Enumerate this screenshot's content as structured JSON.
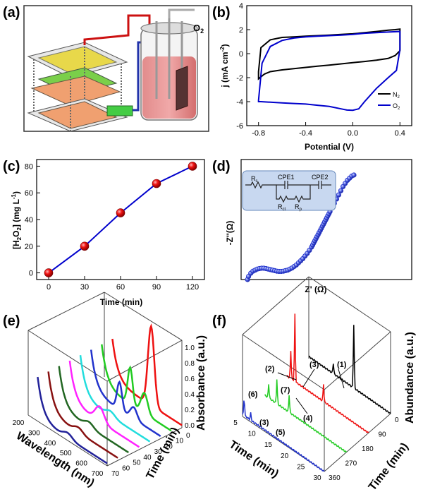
{
  "panel_labels": [
    "(a)",
    "(b)",
    "(c)",
    "(d)",
    "(e)",
    "(f)"
  ],
  "panel_a": {
    "gas_label": "O",
    "gas_sub": "2"
  },
  "chart_data": [
    {
      "id": "b",
      "type": "line",
      "xlabel": "Potential (V)",
      "ylabel": "j (mA cm",
      "ylabel_sup": "-2",
      "ylabel_end": ")",
      "xlim": [
        -0.9,
        0.5
      ],
      "ylim": [
        -6,
        4
      ],
      "x_ticks": [
        -0.8,
        -0.4,
        0.0,
        0.4
      ],
      "x_tick_labels": [
        "-0.8",
        "-0.4",
        "0.0",
        "0.4"
      ],
      "y_ticks": [
        -6,
        -4,
        -2,
        0,
        2,
        4
      ],
      "legend_position": "bottom-right",
      "series": [
        {
          "name": "N",
          "name_sub": "2",
          "color": "#000000",
          "x": [
            -0.8,
            -0.75,
            -0.7,
            -0.6,
            -0.5,
            -0.4,
            -0.3,
            -0.2,
            -0.1,
            0.0,
            0.1,
            0.2,
            0.3,
            0.36,
            0.4,
            0.4,
            0.36,
            0.3,
            0.2,
            0.1,
            0.0,
            -0.1,
            -0.2,
            -0.3,
            -0.4,
            -0.5,
            -0.6,
            -0.7,
            -0.78,
            -0.8
          ],
          "y": [
            -2.1,
            -1.7,
            -1.5,
            -1.35,
            -1.25,
            -1.15,
            -1.05,
            -0.95,
            -0.85,
            -0.75,
            -0.65,
            -0.55,
            -0.4,
            -0.15,
            0.25,
            2.05,
            2.0,
            1.95,
            1.85,
            1.75,
            1.65,
            1.6,
            1.55,
            1.5,
            1.45,
            1.4,
            1.35,
            1.15,
            0.5,
            -1.5
          ]
        },
        {
          "name": "O",
          "name_sub": "2",
          "color": "#0000cc",
          "x": [
            -0.8,
            -0.78,
            -0.7,
            -0.6,
            -0.5,
            -0.4,
            -0.3,
            -0.2,
            -0.1,
            -0.05,
            0.0,
            0.05,
            0.1,
            0.2,
            0.3,
            0.37,
            0.4,
            0.4,
            0.3,
            0.2,
            0.1,
            0.0,
            -0.1,
            -0.2,
            -0.3,
            -0.4,
            -0.5,
            -0.6,
            -0.7,
            -0.77,
            -0.8
          ],
          "y": [
            -4.0,
            -4.0,
            -4.05,
            -4.1,
            -4.15,
            -4.2,
            -4.3,
            -4.4,
            -4.6,
            -4.7,
            -4.72,
            -4.6,
            -4.0,
            -2.9,
            -2.0,
            -1.4,
            0.35,
            1.85,
            1.8,
            1.75,
            1.7,
            1.6,
            1.55,
            1.5,
            1.45,
            1.4,
            1.3,
            1.1,
            0.6,
            -0.8,
            -3.9
          ]
        }
      ]
    },
    {
      "id": "c",
      "type": "line",
      "xlabel": "Time (min)",
      "ylabel_parts": [
        "[H",
        "2",
        "O",
        "2",
        "] (mg L",
        "-1",
        ")"
      ],
      "xlim": [
        -10,
        130
      ],
      "ylim": [
        -5,
        85
      ],
      "x_ticks": [
        0,
        30,
        60,
        90,
        120
      ],
      "y_ticks": [
        0,
        20,
        40,
        60,
        80
      ],
      "series": [
        {
          "name": "",
          "color": "#0000cc",
          "marker_color": "#ee1111",
          "x": [
            0,
            30,
            60,
            90,
            120
          ],
          "y": [
            0,
            20,
            45,
            67,
            80
          ]
        }
      ]
    },
    {
      "id": "d",
      "type": "scatter",
      "xlabel": "Z' (Ω)",
      "ylabel": "-Z''(Ω)",
      "color": "#2233cc",
      "inset": {
        "labels": [
          "R",
          "s",
          "CPE1",
          "CPE2",
          "R",
          "ct",
          "R",
          "p"
        ]
      },
      "x": [
        0.02,
        0.03,
        0.05,
        0.07,
        0.09,
        0.11,
        0.13,
        0.15,
        0.17,
        0.19,
        0.21,
        0.23,
        0.25,
        0.27,
        0.29,
        0.31,
        0.33,
        0.35,
        0.37,
        0.39,
        0.41,
        0.43,
        0.45,
        0.47,
        0.49,
        0.51,
        0.53,
        0.55,
        0.57,
        0.59,
        0.61,
        0.62,
        0.63,
        0.64,
        0.65,
        0.66,
        0.67,
        0.68,
        0.69,
        0.7,
        0.71,
        0.72,
        0.73,
        0.74,
        0.75,
        0.76,
        0.77,
        0.78,
        0.8,
        0.82,
        0.84,
        0.86,
        0.88,
        0.9,
        0.92,
        0.94,
        0.96,
        0.98,
        1.0
      ],
      "y": [
        0.0,
        0.03,
        0.06,
        0.08,
        0.09,
        0.1,
        0.105,
        0.108,
        0.108,
        0.105,
        0.1,
        0.095,
        0.09,
        0.085,
        0.08,
        0.078,
        0.078,
        0.08,
        0.085,
        0.09,
        0.1,
        0.11,
        0.125,
        0.14,
        0.16,
        0.18,
        0.2,
        0.225,
        0.25,
        0.28,
        0.31,
        0.33,
        0.35,
        0.37,
        0.39,
        0.41,
        0.43,
        0.45,
        0.47,
        0.49,
        0.51,
        0.53,
        0.55,
        0.57,
        0.59,
        0.61,
        0.63,
        0.65,
        0.69,
        0.73,
        0.77,
        0.81,
        0.85,
        0.89,
        0.92,
        0.95,
        0.97,
        0.99,
        1.0
      ]
    },
    {
      "id": "e",
      "type": "line",
      "xlabel": "Wavelength (nm)",
      "ylabel": "Absorbance (a.u.)",
      "zlabel": "Time (min)",
      "x_ticks": [
        200,
        300,
        400,
        500,
        600,
        700
      ],
      "z_ticks": [
        0,
        10,
        20,
        30,
        40,
        50,
        60,
        70
      ],
      "y_ticks": [
        "0.0",
        "0.2",
        "0.4",
        "0.6",
        "0.8",
        "1.0"
      ],
      "series": [
        {
          "time": 0,
          "color": "#ee1111"
        },
        {
          "time": 10,
          "color": "#22cc22"
        },
        {
          "time": 20,
          "color": "#2233cc"
        },
        {
          "time": 30,
          "color": "#22dddd"
        },
        {
          "time": 40,
          "color": "#ff22ff"
        },
        {
          "time": 50,
          "color": "#226622"
        },
        {
          "time": 60,
          "color": "#881111"
        },
        {
          "time": 70,
          "color": "#222299"
        }
      ]
    },
    {
      "id": "f",
      "type": "line",
      "xlabel": "Time (min)",
      "ylabel": "Abundance (a.u.)",
      "zlabel": "Time (min)",
      "x_ticks": [
        5,
        10,
        15,
        20,
        25,
        30
      ],
      "z_ticks": [
        0,
        90,
        180,
        270,
        360
      ],
      "series": [
        {
          "time": 0,
          "color": "#000000"
        },
        {
          "time": 90,
          "color": "#ee1111"
        },
        {
          "time": 180,
          "color": "#22cc22"
        },
        {
          "time": 270,
          "color": "#2233cc"
        }
      ],
      "annotations": [
        "(1)",
        "(2)",
        "(3)",
        "(3)",
        "(4)",
        "(5)",
        "(6)",
        "(7)"
      ]
    }
  ]
}
